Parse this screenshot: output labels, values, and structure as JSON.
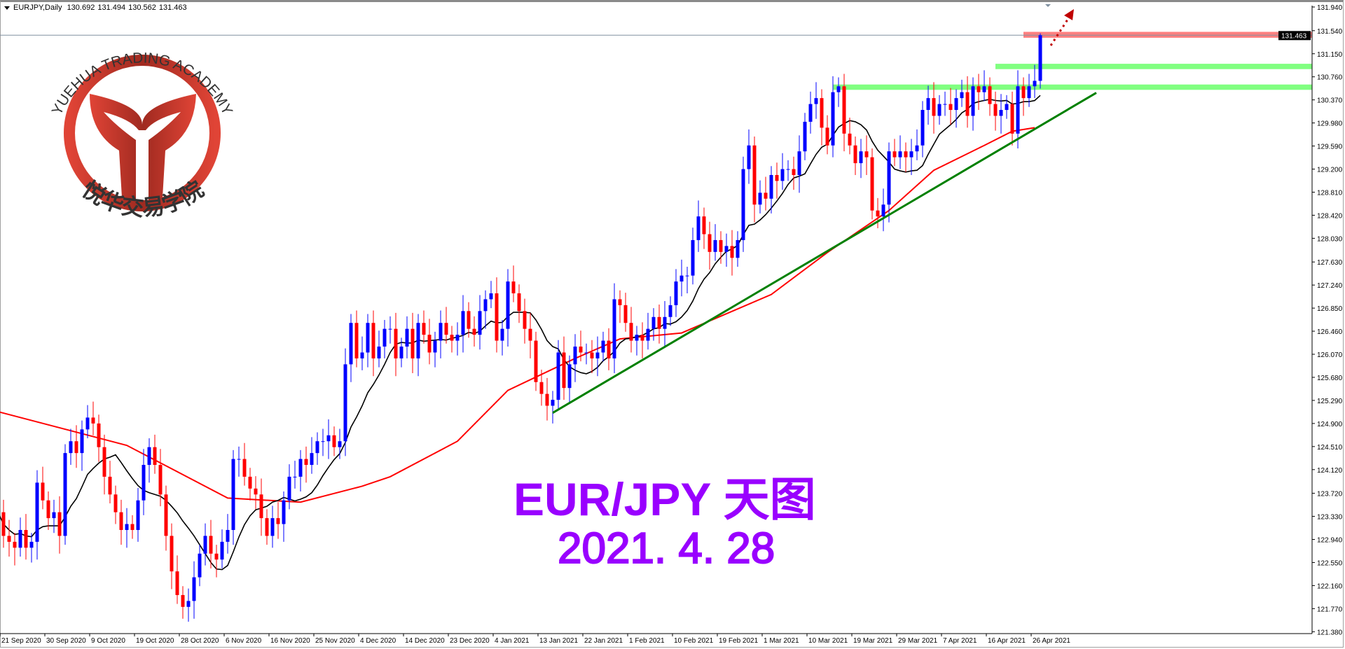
{
  "header": {
    "symbol": "EURJPY,Daily",
    "open": "130.692",
    "high": "131.494",
    "low": "130.562",
    "close": "131.463"
  },
  "logo": {
    "text_en": "YUEHUA TRADING ACADEMY",
    "text_cn": "悦华交易学院",
    "color": "#b0302a"
  },
  "overlay": {
    "title": "EUR/JPY 天图",
    "date": "2021. 4. 28",
    "color": "#9900ff"
  },
  "colors": {
    "bull": "#0000ff",
    "bear": "#ff0000",
    "ma_fast": "#000000",
    "ma_slow": "#ff0000",
    "trendline": "#008000",
    "zone_green": "#80ff80",
    "zone_red": "#ff8080",
    "arrow": "#c00000"
  },
  "chart_data": {
    "type": "candlestick",
    "symbol": "EURJPY",
    "timeframe": "Daily",
    "ylim": [
      121.38,
      131.94
    ],
    "y_ticks": [
      "131.940",
      "131.540",
      "131.150",
      "130.760",
      "130.370",
      "129.980",
      "129.590",
      "129.200",
      "128.810",
      "128.420",
      "128.030",
      "127.630",
      "127.240",
      "126.850",
      "126.460",
      "126.070",
      "125.680",
      "125.290",
      "124.900",
      "124.510",
      "124.120",
      "123.720",
      "123.330",
      "122.940",
      "122.550",
      "122.160",
      "121.770",
      "121.380"
    ],
    "x_ticks": [
      "21 Sep 2020",
      "30 Sep 2020",
      "9 Oct 2020",
      "19 Oct 2020",
      "28 Oct 2020",
      "6 Nov 2020",
      "16 Nov 2020",
      "25 Nov 2020",
      "4 Dec 2020",
      "14 Dec 2020",
      "23 Dec 2020",
      "4 Jan 2021",
      "13 Jan 2021",
      "22 Jan 2021",
      "1 Feb 2021",
      "10 Feb 2021",
      "19 Feb 2021",
      "1 Mar 2021",
      "10 Mar 2021",
      "19 Mar 2021",
      "29 Mar 2021",
      "7 Apr 2021",
      "16 Apr 2021",
      "26 Apr 2021"
    ],
    "bars_per_tick": 8,
    "current_price": "131.463",
    "closes": [
      123.4,
      123.0,
      122.9,
      122.8,
      123.1,
      122.8,
      122.9,
      123.9,
      123.6,
      123.3,
      123.4,
      123.0,
      124.4,
      124.6,
      124.4,
      124.8,
      125.0,
      124.9,
      124.5,
      124.0,
      123.7,
      123.4,
      123.1,
      123.2,
      123.1,
      123.6,
      124.2,
      124.5,
      124.2,
      123.7,
      123.0,
      122.4,
      122.0,
      121.8,
      121.9,
      122.3,
      122.7,
      123.0,
      122.7,
      122.6,
      122.9,
      123.1,
      124.3,
      124.3,
      124.0,
      123.8,
      123.7,
      123.3,
      123.0,
      123.3,
      123.2,
      123.6,
      124.0,
      124.0,
      124.3,
      124.2,
      124.4,
      124.6,
      124.6,
      124.7,
      124.5,
      124.6,
      125.9,
      126.6,
      126.0,
      126.1,
      126.6,
      126.0,
      126.2,
      126.5,
      126.5,
      126.0,
      126.2,
      126.5,
      126.0,
      126.6,
      126.4,
      126.1,
      126.3,
      126.6,
      126.4,
      126.3,
      126.4,
      126.8,
      126.5,
      126.4,
      126.8,
      127.0,
      127.1,
      126.3,
      126.5,
      127.3,
      127.1,
      126.8,
      126.5,
      126.3,
      125.6,
      125.4,
      125.2,
      125.3,
      126.1,
      125.5,
      125.9,
      126.2,
      126.1,
      126.1,
      126.0,
      126.1,
      126.3,
      126.0,
      127.0,
      126.9,
      126.6,
      126.3,
      126.4,
      126.3,
      126.5,
      126.7,
      126.5,
      126.7,
      126.9,
      127.3,
      127.4,
      127.4,
      128.0,
      128.4,
      128.1,
      127.8,
      128.0,
      127.8,
      127.9,
      127.7,
      128.0,
      129.2,
      129.6,
      128.6,
      128.8,
      128.7,
      129.1,
      129.0,
      129.2,
      129.2,
      129.1,
      129.5,
      130.0,
      130.3,
      130.4,
      129.9,
      129.6,
      130.5,
      130.6,
      129.8,
      129.6,
      129.3,
      129.5,
      129.4,
      128.5,
      128.4,
      128.6,
      129.5,
      129.4,
      129.5,
      129.4,
      129.5,
      129.6,
      130.2,
      130.4,
      130.1,
      130.3,
      130.3,
      130.2,
      130.4,
      130.5,
      130.1,
      130.6,
      130.5,
      130.6,
      130.3,
      130.1,
      130.2,
      130.3,
      129.8,
      130.6,
      130.4,
      130.6,
      130.692,
      131.463
    ],
    "last_bar": {
      "open": 130.692,
      "high": 131.494,
      "low": 130.562,
      "close": 131.463
    },
    "ma_slow_points": [
      [
        0,
        125.1
      ],
      [
        23,
        124.53
      ],
      [
        41,
        123.64
      ],
      [
        54,
        123.57
      ],
      [
        65,
        123.84
      ],
      [
        70,
        124.0
      ],
      [
        82,
        124.6
      ],
      [
        91,
        125.46
      ],
      [
        103,
        126.0
      ],
      [
        111,
        126.33
      ],
      [
        122,
        126.43
      ],
      [
        138,
        127.08
      ],
      [
        148,
        127.79
      ],
      [
        159,
        128.5
      ],
      [
        167,
        129.18
      ],
      [
        176,
        129.6
      ],
      [
        181,
        129.84
      ],
      [
        185,
        129.9
      ]
    ],
    "zones": [
      {
        "color": "red",
        "from_bar": 183,
        "price_top": 131.52,
        "price_bottom": 131.42
      },
      {
        "color": "green",
        "from_bar": 178,
        "price_top": 130.98,
        "price_bottom": 130.89
      },
      {
        "color": "green",
        "from_bar": 149,
        "price_top": 130.63,
        "price_bottom": 130.54
      }
    ],
    "trendline": {
      "from": [
        99,
        125.08
      ],
      "to": [
        196,
        130.49
      ]
    }
  }
}
